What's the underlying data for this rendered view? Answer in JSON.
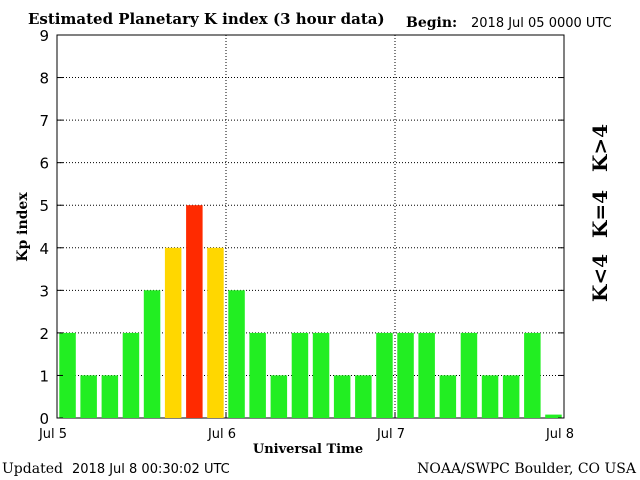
{
  "header": {
    "title": "Estimated Planetary K index (3 hour data)",
    "begin_label": "Begin:",
    "begin_value": "2018 Jul 05 0000 UTC"
  },
  "footer": {
    "updated_label": "Updated",
    "updated_value": "2018 Jul  8 00:30:02 UTC",
    "source": "NOAA/SWPC Boulder, CO USA"
  },
  "legend": {
    "items": [
      {
        "label": "K<4",
        "color": "#22ee22"
      },
      {
        "label": "K=4",
        "color": "#ffd700"
      },
      {
        "label": "K>4",
        "color": "#ff2a00"
      }
    ]
  },
  "colors": {
    "low": "#22ee22",
    "equal": "#ffd700",
    "high": "#ff2a00"
  },
  "chart_data": {
    "type": "bar",
    "title": "Estimated Planetary K index (3 hour data)",
    "xlabel": "Universal Time",
    "ylabel": "Kp index",
    "ylim": [
      0,
      9
    ],
    "yticks": [
      "0",
      "1",
      "2",
      "3",
      "4",
      "5",
      "6",
      "7",
      "8",
      "9"
    ],
    "xticks": [
      "Jul 5",
      "Jul 6",
      "Jul 7",
      "Jul 8"
    ],
    "grid": true,
    "bar_interval_hours": 3,
    "values": [
      2,
      1,
      1,
      2,
      3,
      4,
      5,
      4,
      3,
      2,
      1,
      2,
      2,
      1,
      1,
      2,
      2,
      2,
      1,
      2,
      1,
      1,
      2,
      0
    ]
  }
}
